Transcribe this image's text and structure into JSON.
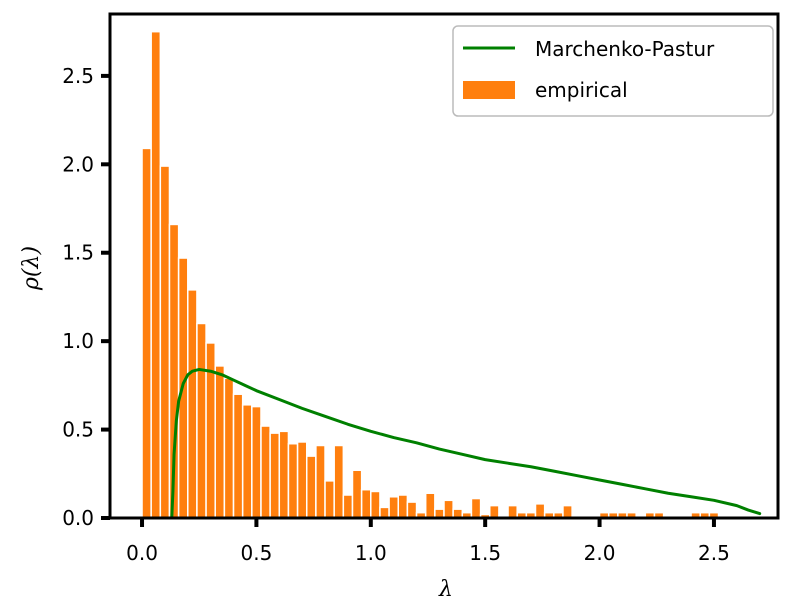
{
  "chart_data": {
    "type": "bar",
    "xlabel": "λ",
    "ylabel": "ρ(λ)",
    "xlim": [
      -0.14,
      2.78
    ],
    "ylim": [
      0.0,
      2.85
    ],
    "xticks": [
      0.0,
      0.5,
      1.0,
      1.5,
      2.0,
      2.5
    ],
    "xtick_labels": [
      "0.0",
      "0.5",
      "1.0",
      "1.5",
      "2.0",
      "2.5"
    ],
    "yticks": [
      0.0,
      0.5,
      1.0,
      1.5,
      2.0,
      2.5
    ],
    "ytick_labels": [
      "0.0",
      "0.5",
      "1.0",
      "1.5",
      "2.0",
      "2.5"
    ],
    "grid": false,
    "legend_position": "top-right",
    "colors": {
      "histogram": "#ff7f0e",
      "curve": "#008000"
    },
    "series": [
      {
        "name": "empirical",
        "type": "histogram",
        "bin_width": 0.04,
        "bin_left_edges": [
          0.0,
          0.04,
          0.08,
          0.12,
          0.16,
          0.2,
          0.24,
          0.28,
          0.32,
          0.36,
          0.4,
          0.44,
          0.48,
          0.52,
          0.56,
          0.6,
          0.64,
          0.68,
          0.72,
          0.76,
          0.8,
          0.84,
          0.88,
          0.92,
          0.96,
          1.0,
          1.04,
          1.08,
          1.12,
          1.16,
          1.2,
          1.24,
          1.28,
          1.32,
          1.36,
          1.4,
          1.44,
          1.48,
          1.52,
          1.56,
          1.6,
          1.64,
          1.68,
          1.72,
          1.76,
          1.8,
          1.84,
          1.88,
          1.92,
          1.96,
          2.0,
          2.04,
          2.08,
          2.12,
          2.16,
          2.2,
          2.24,
          2.28,
          2.32,
          2.36,
          2.4,
          2.44,
          2.48,
          2.52
        ],
        "values": [
          2.09,
          2.75,
          1.99,
          1.66,
          1.47,
          1.29,
          1.1,
          0.99,
          0.86,
          0.79,
          0.7,
          0.64,
          0.63,
          0.52,
          0.48,
          0.49,
          0.42,
          0.43,
          0.35,
          0.41,
          0.21,
          0.41,
          0.13,
          0.27,
          0.16,
          0.15,
          0.06,
          0.12,
          0.13,
          0.09,
          0.03,
          0.14,
          0.05,
          0.1,
          0.05,
          0.03,
          0.11,
          0.02,
          0.07,
          0.01,
          0.07,
          0.03,
          0.03,
          0.08,
          0.03,
          0.03,
          0.07,
          0.0,
          0.0,
          0.0,
          0.03,
          0.03,
          0.03,
          0.03,
          0.0,
          0.03,
          0.03,
          0.0,
          0.0,
          0.0,
          0.03,
          0.03,
          0.03,
          0.0
        ]
      },
      {
        "name": "Marchenko-Pastur",
        "type": "line",
        "x": [
          0.13,
          0.135,
          0.14,
          0.15,
          0.16,
          0.18,
          0.2,
          0.22,
          0.25,
          0.3,
          0.35,
          0.4,
          0.45,
          0.5,
          0.6,
          0.7,
          0.8,
          0.9,
          1.0,
          1.1,
          1.2,
          1.3,
          1.4,
          1.5,
          1.6,
          1.7,
          1.8,
          1.9,
          2.0,
          2.1,
          2.2,
          2.3,
          2.4,
          2.5,
          2.6,
          2.65,
          2.7
        ],
        "y": [
          0.0,
          0.15,
          0.36,
          0.55,
          0.66,
          0.76,
          0.81,
          0.83,
          0.84,
          0.83,
          0.81,
          0.78,
          0.75,
          0.72,
          0.67,
          0.62,
          0.575,
          0.53,
          0.49,
          0.455,
          0.425,
          0.39,
          0.36,
          0.33,
          0.31,
          0.29,
          0.265,
          0.24,
          0.215,
          0.19,
          0.165,
          0.14,
          0.12,
          0.1,
          0.07,
          0.045,
          0.025
        ]
      }
    ]
  }
}
